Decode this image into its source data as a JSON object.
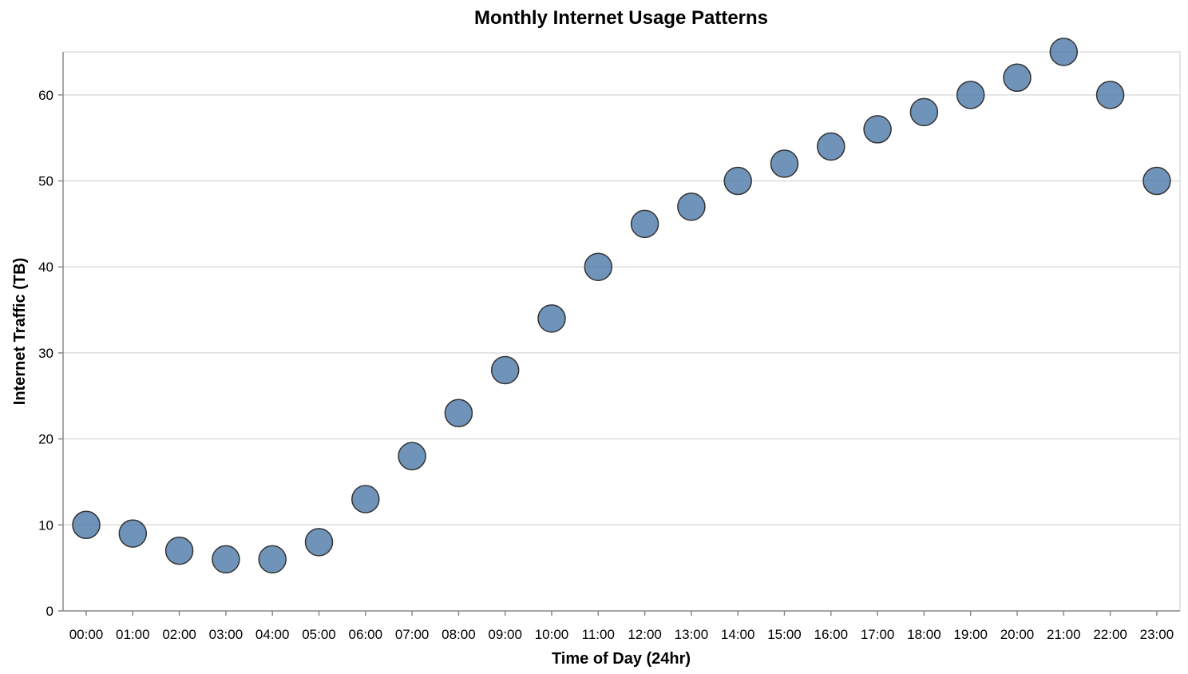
{
  "chart_data": {
    "type": "scatter",
    "title": "Monthly Internet Usage Patterns",
    "xlabel": "Time of Day (24hr)",
    "ylabel": "Internet Traffic (TB)",
    "categories": [
      "00:00",
      "01:00",
      "02:00",
      "03:00",
      "04:00",
      "05:00",
      "06:00",
      "07:00",
      "08:00",
      "09:00",
      "10:00",
      "11:00",
      "12:00",
      "13:00",
      "14:00",
      "15:00",
      "16:00",
      "17:00",
      "18:00",
      "19:00",
      "20:00",
      "21:00",
      "22:00",
      "23:00"
    ],
    "values": [
      10,
      9,
      7,
      6,
      6,
      8,
      13,
      18,
      23,
      28,
      34,
      40,
      45,
      47,
      50,
      52,
      54,
      56,
      58,
      60,
      62,
      65,
      60,
      50
    ],
    "yticks": [
      0,
      10,
      20,
      30,
      40,
      50,
      60
    ],
    "ylim": [
      0,
      65
    ],
    "grid": true,
    "colors": {
      "point_fill": "#4c78a8",
      "point_stroke": "#333333",
      "grid": "#dddddd",
      "axis": "#888888"
    }
  }
}
